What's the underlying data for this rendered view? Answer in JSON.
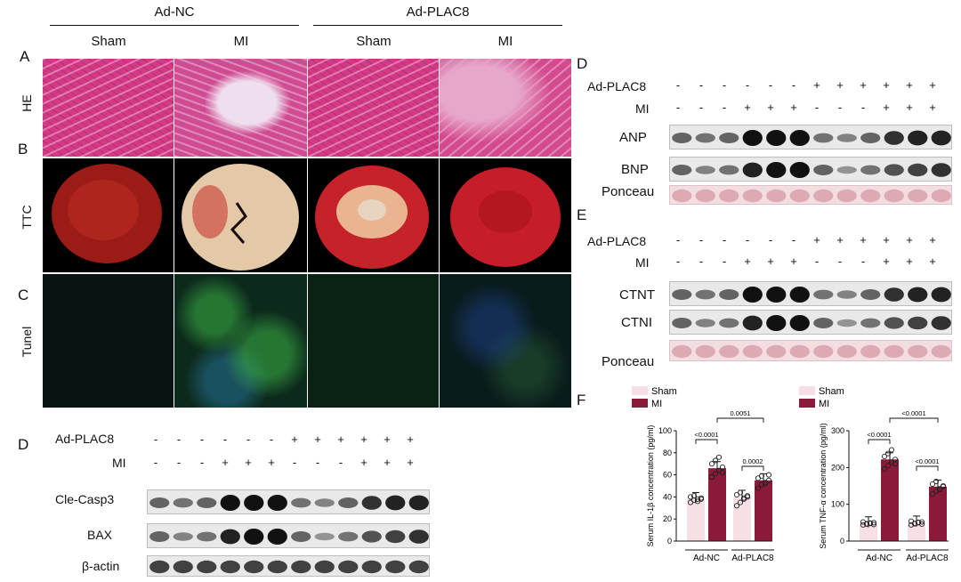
{
  "left_figure": {
    "groups": [
      {
        "label": "Ad-NC",
        "columns": [
          "Sham",
          "MI"
        ]
      },
      {
        "label": "Ad-PLAC8",
        "columns": [
          "Sham",
          "MI"
        ]
      }
    ],
    "rows": [
      {
        "letter": "A",
        "label": "HE"
      },
      {
        "letter": "B",
        "label": "TTC"
      },
      {
        "letter": "C",
        "label": "Tunel"
      }
    ]
  },
  "blot_D_left": {
    "letter": "D",
    "treatments": [
      {
        "label": "Ad-PLAC8",
        "signs": [
          "-",
          "-",
          "-",
          "-",
          "-",
          "-",
          "+",
          "+",
          "+",
          "+",
          "+",
          "+"
        ]
      },
      {
        "label": "MI",
        "signs": [
          "-",
          "-",
          "-",
          "+",
          "+",
          "+",
          "-",
          "-",
          "-",
          "+",
          "+",
          "+"
        ]
      }
    ],
    "rows": [
      "Cle-Casp3",
      "BAX",
      "β-actin"
    ]
  },
  "blot_D_right": {
    "letter": "D",
    "treatments": [
      {
        "label": "Ad-PLAC8",
        "signs": [
          "-",
          "-",
          "-",
          "-",
          "-",
          "-",
          "+",
          "+",
          "+",
          "+",
          "+",
          "+"
        ]
      },
      {
        "label": "MI",
        "signs": [
          "-",
          "-",
          "-",
          "+",
          "+",
          "+",
          "-",
          "-",
          "-",
          "+",
          "+",
          "+"
        ]
      }
    ],
    "rows": [
      "ANP",
      "BNP",
      "Ponceau"
    ]
  },
  "blot_E": {
    "letter": "E",
    "treatments": [
      {
        "label": "Ad-PLAC8",
        "signs": [
          "-",
          "-",
          "-",
          "-",
          "-",
          "-",
          "+",
          "+",
          "+",
          "+",
          "+",
          "+"
        ]
      },
      {
        "label": "MI",
        "signs": [
          "-",
          "-",
          "-",
          "+",
          "+",
          "+",
          "-",
          "-",
          "-",
          "+",
          "+",
          "+"
        ]
      }
    ],
    "rows": [
      "CTNT",
      "CTNI",
      "Ponceau"
    ]
  },
  "panel_F_letter": "F",
  "colors": {
    "sham": "#f7dfe6",
    "mi": "#8b1a3a"
  },
  "chart_data": [
    {
      "type": "bar",
      "ylabel": "Serum IL-1β concentration (pg/ml)",
      "ylim": [
        0,
        100
      ],
      "yticks": [
        0,
        20,
        40,
        60,
        80,
        100
      ],
      "groups": [
        "Ad-NC",
        "Ad-PLAC8"
      ],
      "legend": [
        "Sham",
        "MI"
      ],
      "series": [
        {
          "name": "Sham",
          "values": [
            38,
            40
          ]
        },
        {
          "name": "MI",
          "values": [
            66,
            55
          ]
        }
      ],
      "points": {
        "Sham": [
          [
            35,
            37,
            38,
            39,
            40,
            41,
            36,
            38
          ],
          [
            32,
            35,
            38,
            40,
            42,
            44,
            39,
            41
          ]
        ],
        "MI": [
          [
            58,
            61,
            64,
            67,
            70,
            73,
            76,
            62
          ],
          [
            48,
            51,
            53,
            55,
            57,
            59,
            52,
            60
          ]
        ]
      },
      "comparisons": [
        {
          "label": "<0.0001",
          "level": 1
        },
        {
          "label": "0.0002",
          "level": 1
        },
        {
          "label": "0.0051",
          "level": 2
        }
      ]
    },
    {
      "type": "bar",
      "ylabel": "Serum TNF-α concentration (pg/ml)",
      "ylim": [
        0,
        300
      ],
      "yticks": [
        0,
        100,
        200,
        300
      ],
      "groups": [
        "Ad-NC",
        "Ad-PLAC8"
      ],
      "legend": [
        "Sham",
        "MI"
      ],
      "series": [
        {
          "name": "Sham",
          "values": [
            48,
            50
          ]
        },
        {
          "name": "MI",
          "values": [
            222,
            148
          ]
        }
      ],
      "points": {
        "Sham": [
          [
            44,
            46,
            48,
            50,
            52,
            47,
            49,
            45
          ],
          [
            44,
            47,
            50,
            52,
            54,
            48,
            51,
            46
          ]
        ],
        "MI": [
          [
            196,
            205,
            214,
            222,
            230,
            238,
            248,
            210
          ],
          [
            128,
            136,
            142,
            148,
            155,
            162,
            140,
            150
          ]
        ]
      },
      "comparisons": [
        {
          "label": "<0.0001",
          "level": 1
        },
        {
          "label": "<0.0001",
          "level": 1
        },
        {
          "label": "<0.0001",
          "level": 2
        }
      ]
    }
  ]
}
